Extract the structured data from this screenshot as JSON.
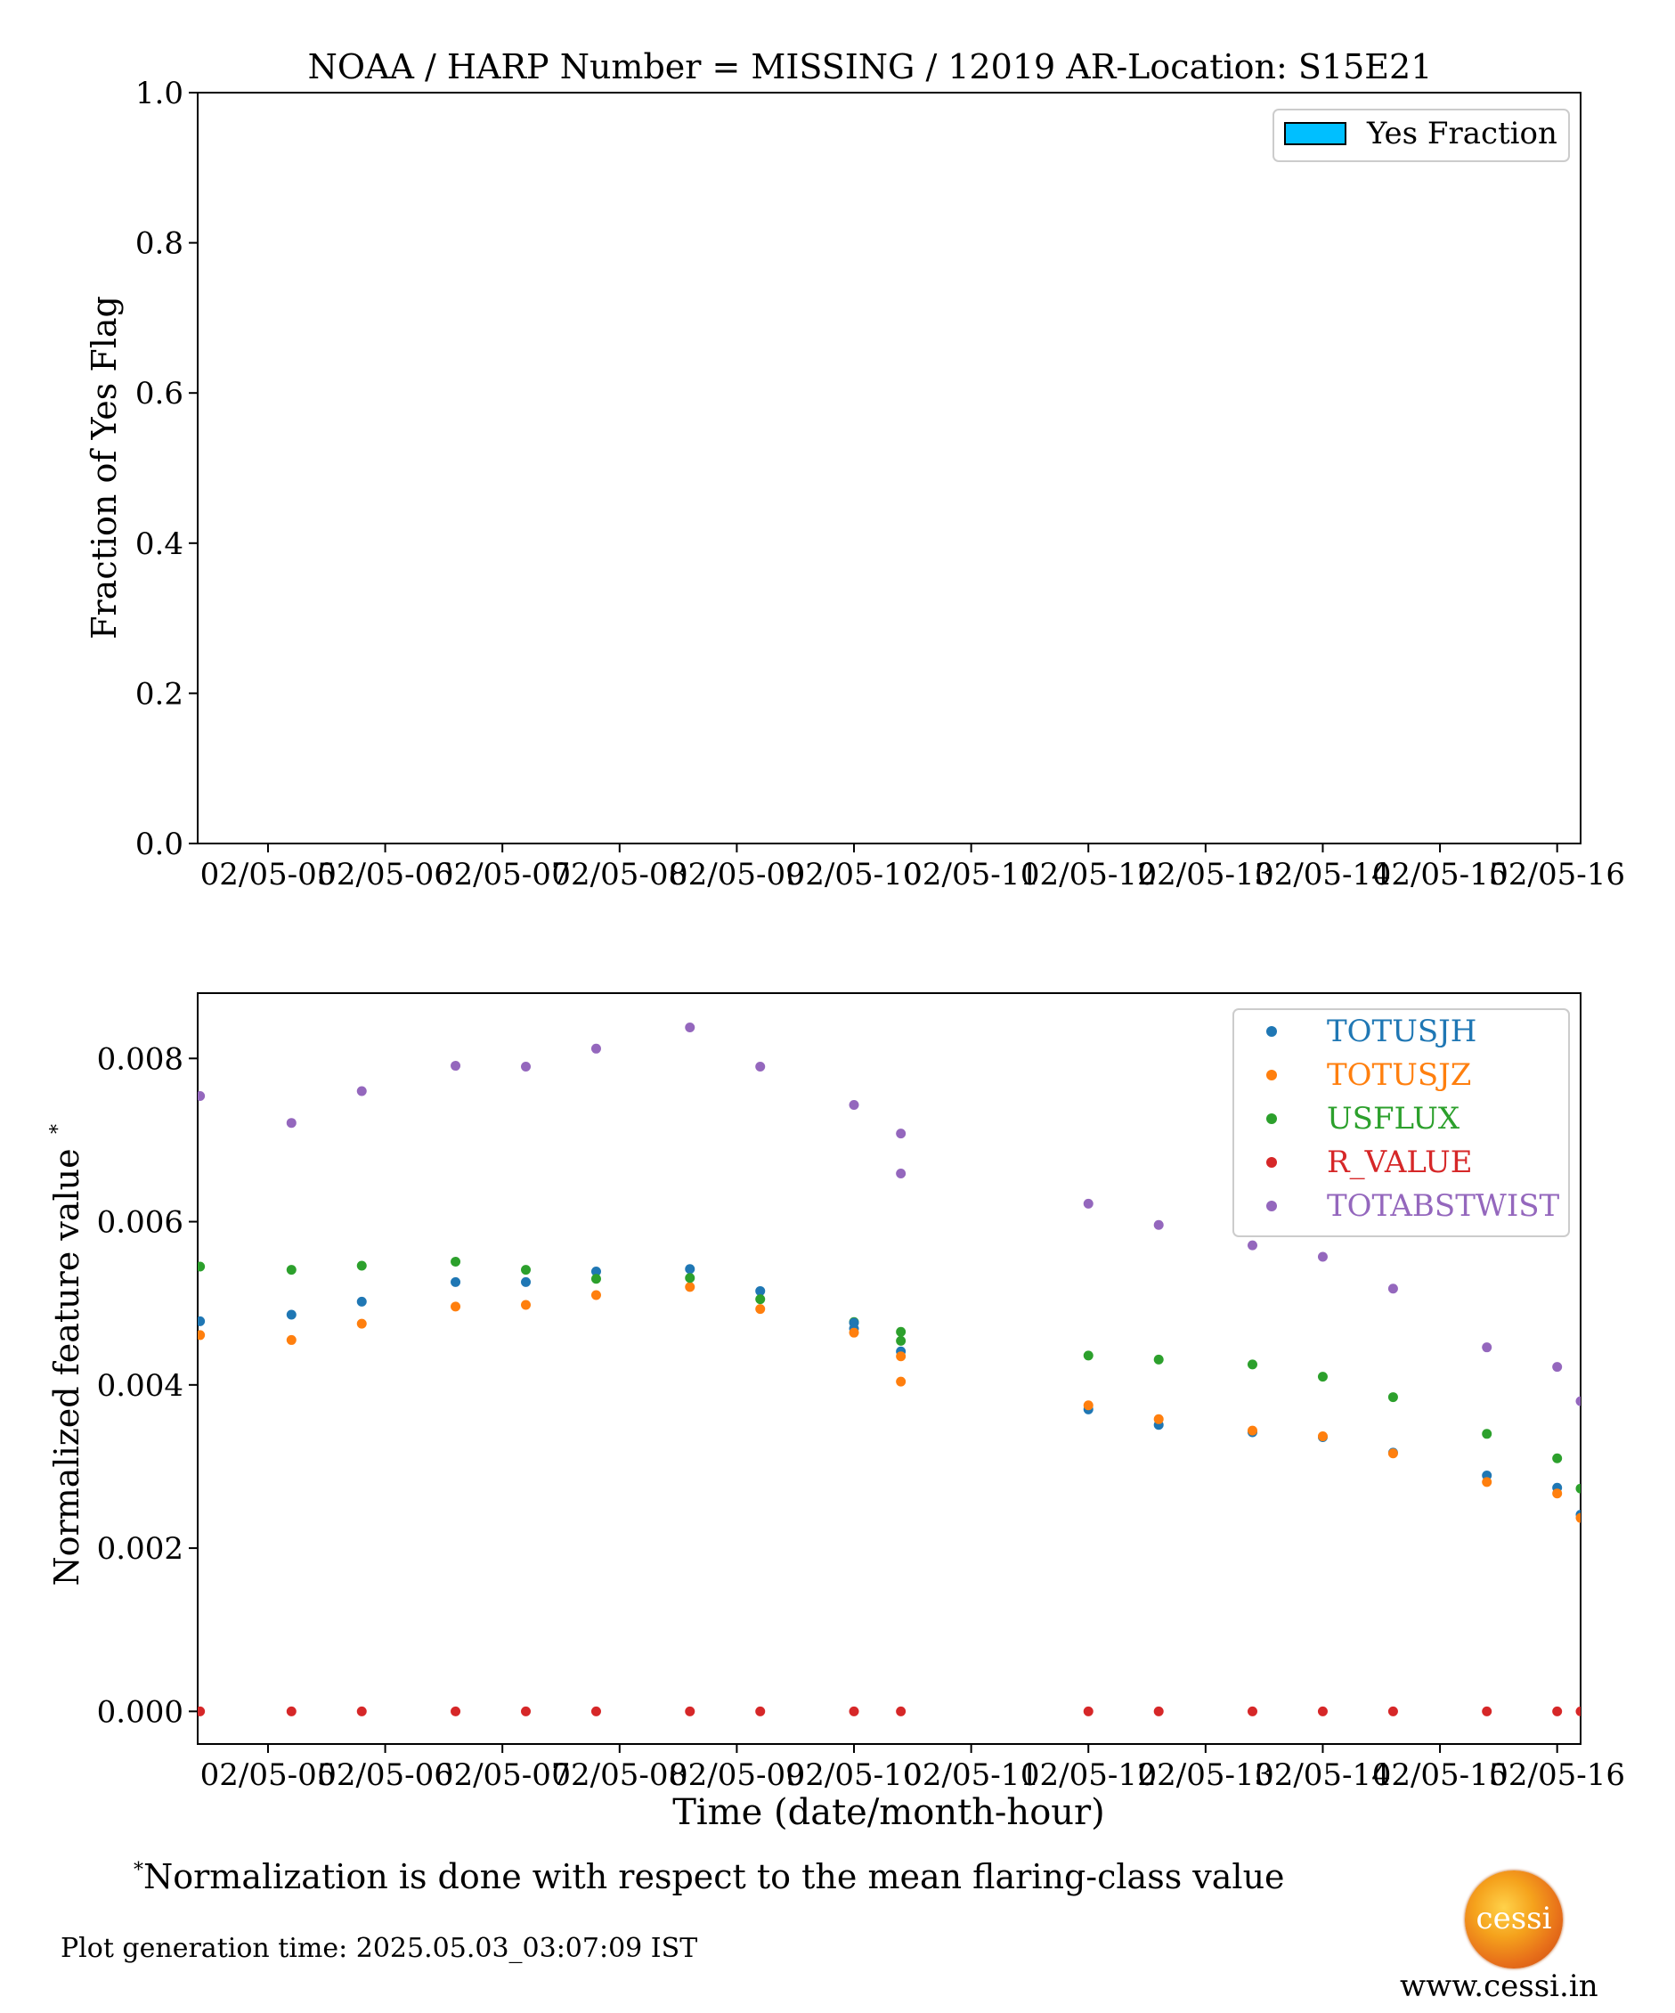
{
  "top_chart": {
    "title": "NOAA / HARP Number = MISSING / 12019      AR-Location: S15E21",
    "ylabel": "Fraction of Yes Flag",
    "yticks": [
      "0.0",
      "0.2",
      "0.4",
      "0.6",
      "0.8",
      "1.0"
    ],
    "legend_label": "Yes Fraction",
    "legend_color": "#00bfff"
  },
  "bottom_chart": {
    "xlabel": "Time (date/month-hour)",
    "ylabel": "Normalized feature value",
    "ylabel_mark": "*",
    "yticks": [
      "0.000",
      "0.002",
      "0.004",
      "0.006",
      "0.008"
    ]
  },
  "xticks": [
    "02/05-05",
    "02/05-06",
    "02/05-07",
    "02/05-08",
    "02/05-09",
    "02/05-10",
    "02/05-11",
    "02/05-12",
    "02/05-13",
    "02/05-14",
    "02/05-15",
    "02/05-16"
  ],
  "footnote_mark": "*",
  "footnote": "Normalization is done with respect to the mean flaring-class value",
  "generation_time": "Plot generation time: 2025.05.03_03:07:09 IST",
  "logo_text": "cessi",
  "website": "www.cessi.in",
  "chart_data": [
    {
      "type": "bar",
      "title": "NOAA / HARP Number = MISSING / 12019      AR-Location: S15E21",
      "xlabel": "",
      "ylabel": "Fraction of Yes Flag",
      "ylim": [
        0,
        1
      ],
      "xlim_hours": [
        4.4,
        16.2
      ],
      "series": [
        {
          "name": "Yes Fraction",
          "color": "#00bfff",
          "values": []
        }
      ],
      "legend": "top-right",
      "grid": false
    },
    {
      "type": "scatter",
      "xlabel": "Time (date/month-hour)",
      "ylabel": "Normalized feature value*",
      "ylim": [
        -0.0004,
        0.0088
      ],
      "xlim_hours": [
        4.4,
        16.2
      ],
      "x_hours": [
        4.42,
        5.2,
        5.8,
        6.6,
        7.2,
        7.8,
        8.6,
        9.2,
        10.0,
        10.4,
        12.0,
        12.6,
        13.4,
        14.0,
        14.6,
        15.4,
        16.0,
        16.2
      ],
      "series": [
        {
          "name": "TOTUSJH",
          "color": "#1f77b4",
          "y": [
            0.00478,
            0.00486,
            0.00502,
            0.00526,
            0.00526,
            0.00539,
            0.00542,
            0.00515,
            0.00469,
            0.00441,
            0.0037,
            0.00351,
            0.00342,
            0.00336,
            0.00317,
            0.00289,
            0.00274,
            0.00241
          ]
        },
        {
          "name": "TOTUSJZ",
          "color": "#ff7f0e",
          "y": [
            0.00461,
            0.00455,
            0.00475,
            0.00496,
            0.00498,
            0.0051,
            0.0052,
            0.00493,
            0.00464,
            0.00435,
            0.00375,
            0.00358,
            0.00344,
            0.00337,
            0.00316,
            0.00281,
            0.00267,
            0.00237
          ]
        },
        {
          "name": "USFLUX",
          "color": "#2ca02c",
          "y": [
            0.00545,
            0.00541,
            0.00546,
            0.00551,
            0.00541,
            0.0053,
            0.00531,
            0.00505,
            0.00477,
            0.00465,
            0.00436,
            0.00431,
            0.00425,
            0.0041,
            0.00385,
            0.0034,
            0.0031,
            0.00273
          ]
        },
        {
          "name": "R_VALUE",
          "color": "#d62728",
          "y": [
            0,
            0,
            0,
            0,
            0,
            0,
            0,
            0,
            0,
            0,
            0,
            0,
            0,
            0,
            0,
            0,
            0,
            0
          ]
        },
        {
          "name": "TOTABSTWIST",
          "color": "#9467bd",
          "y": [
            0.00754,
            0.00721,
            0.0076,
            0.00791,
            0.0079,
            0.00812,
            0.00838,
            0.0079,
            0.00743,
            0.00708,
            0.00622,
            0.00596,
            0.00571,
            0.00557,
            0.00518,
            0.00446,
            0.00422,
            0.0038
          ]
        }
      ],
      "extra_points": [
        {
          "series": "TOTUSJH",
          "x": 10.0,
          "y": 0.00476
        },
        {
          "series": "USFLUX",
          "x": 10.4,
          "y": 0.00454
        },
        {
          "series": "TOTUSJZ",
          "x": 10.4,
          "y": 0.00404
        },
        {
          "series": "TOTABSTWIST",
          "x": 10.4,
          "y": 0.00659
        }
      ],
      "legend": "top-right",
      "grid": false
    }
  ]
}
